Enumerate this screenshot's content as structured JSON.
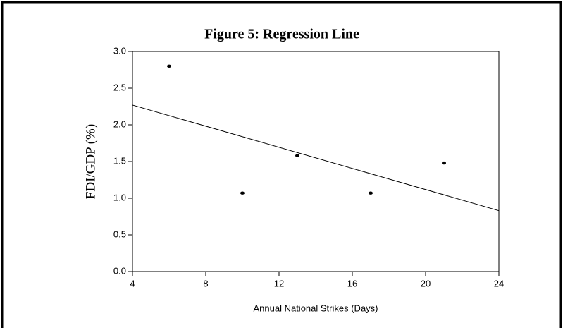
{
  "chart_data": {
    "type": "scatter",
    "title": "Figure 5: Regression Line",
    "xlabel": "Annual National Strikes (Days)",
    "ylabel": "FDI/GDP (%)",
    "points": {
      "color": "#000000",
      "x": [
        6,
        10,
        13,
        17,
        21
      ],
      "values": [
        2.8,
        1.07,
        1.58,
        1.07,
        1.48
      ]
    },
    "line": {
      "color": "#000000",
      "x": [
        4,
        24
      ],
      "values": [
        2.27,
        0.83
      ]
    },
    "xlim": [
      4,
      24
    ],
    "xticks": [
      4,
      8,
      12,
      16,
      20,
      24
    ],
    "ylim": [
      0,
      3
    ],
    "yticks": [
      {
        "value": 0,
        "label": "0.0"
      },
      0.5,
      {
        "value": 1,
        "label": "1.0"
      },
      1.5,
      {
        "value": 2,
        "label": "2.0"
      },
      2.5,
      {
        "value": 3,
        "label": "3.0"
      }
    ]
  }
}
